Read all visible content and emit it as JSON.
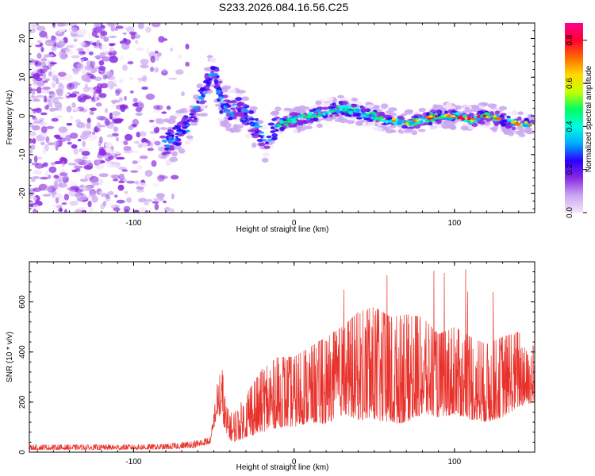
{
  "title": "S233.2026.084.16.56.C25",
  "chart_data": [
    {
      "type": "heatmap",
      "title": "S233.2026.084.16.56.C25",
      "xlabel": "Height of straight line (km)",
      "ylabel": "Frequency (Hz)",
      "xlim": [
        -165,
        150
      ],
      "ylim": [
        -25,
        24
      ],
      "xticks": [
        -100,
        0,
        100
      ],
      "yticks": [
        -20,
        -10,
        0,
        10,
        20
      ],
      "colorbar": {
        "label": "Normalized spectral amplitude",
        "range": [
          0.0,
          0.88
        ],
        "ticks": [
          0.0,
          0.2,
          0.4,
          0.6,
          0.8
        ],
        "colors": [
          "#f4e6fa",
          "#c9a6f0",
          "#8a2be2",
          "#2a00ff",
          "#00aaff",
          "#00ffe0",
          "#00ff60",
          "#c8ff00",
          "#ffd800",
          "#ff6a00",
          "#ff0030",
          "#ff0090"
        ]
      },
      "ridge": {
        "x": [
          -80,
          -72,
          -65,
          -60,
          -56,
          -53,
          -50,
          -47,
          -45,
          -40,
          -35,
          -30,
          -25,
          -20,
          -17,
          -14,
          -10,
          0,
          10,
          20,
          30,
          40,
          50,
          60,
          70,
          80,
          90,
          100,
          110,
          120,
          130,
          140,
          150
        ],
        "y": [
          -7,
          -5,
          -2,
          3,
          6,
          10,
          12,
          7,
          3,
          1,
          2,
          0,
          -2,
          -5,
          -7,
          -4,
          -2,
          -1,
          0,
          1,
          2,
          1,
          0,
          -1,
          -2,
          -1,
          0,
          0,
          -1,
          0,
          -1,
          -2,
          -2
        ]
      }
    },
    {
      "type": "line",
      "xlabel": "Height of straight line (km)",
      "ylabel": "SNR (10 * v/v)",
      "xlim": [
        -165,
        150
      ],
      "ylim": [
        0,
        760
      ],
      "xticks": [
        -100,
        0,
        100
      ],
      "yticks": [
        0,
        200,
        400,
        600
      ],
      "color": "#e8312a",
      "envelope": {
        "x": [
          -165,
          -120,
          -80,
          -62,
          -52,
          -48,
          -45,
          -42,
          -38,
          -30,
          -20,
          -10,
          0,
          10,
          20,
          30,
          40,
          50,
          60,
          70,
          80,
          90,
          100,
          110,
          120,
          130,
          140,
          150
        ],
        "low": [
          10,
          10,
          12,
          18,
          35,
          150,
          130,
          60,
          40,
          60,
          80,
          100,
          100,
          120,
          110,
          150,
          130,
          130,
          110,
          120,
          150,
          140,
          150,
          130,
          120,
          140,
          180,
          200
        ],
        "high": [
          30,
          30,
          32,
          45,
          60,
          270,
          340,
          180,
          150,
          230,
          330,
          380,
          380,
          420,
          460,
          500,
          560,
          580,
          540,
          550,
          540,
          470,
          500,
          460,
          430,
          460,
          480,
          420
        ]
      }
    }
  ]
}
